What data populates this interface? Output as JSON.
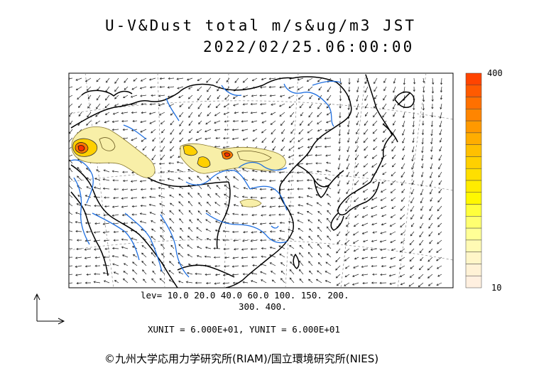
{
  "header": {
    "title_line1": "U-V&Dust total m/s&ug/m3 JST",
    "title_line2": "2022/02/25.06:00:00"
  },
  "legend": {
    "levels_line1": "lev= 10.0 20.0 40.0 60.0 100. 150. 200.",
    "levels_line2": "300. 400.",
    "units": "XUNIT = 6.000E+01, YUNIT = 6.000E+01"
  },
  "colorbar": {
    "max_label": "400",
    "min_label": "10",
    "colors": [
      "#ff4400",
      "#ff5a00",
      "#ff7000",
      "#ff8500",
      "#ff9900",
      "#ffad00",
      "#ffc000",
      "#ffd000",
      "#ffdf00",
      "#ffec00",
      "#fff800",
      "#ffff3c",
      "#ffff70",
      "#ffff96",
      "#fffab4",
      "#fff6c8",
      "#fff2d6",
      "#fff0e0"
    ]
  },
  "map": {
    "land_line_color": "#000000",
    "river_color": "#1f6fe0",
    "dust_colors": [
      "#f8efa8",
      "#ffd000",
      "#ff7a00",
      "#ff3000"
    ]
  },
  "footer": {
    "credit": "©九州大学応用力学研究所(RIAM)/国立環境研究所(NIES)"
  }
}
